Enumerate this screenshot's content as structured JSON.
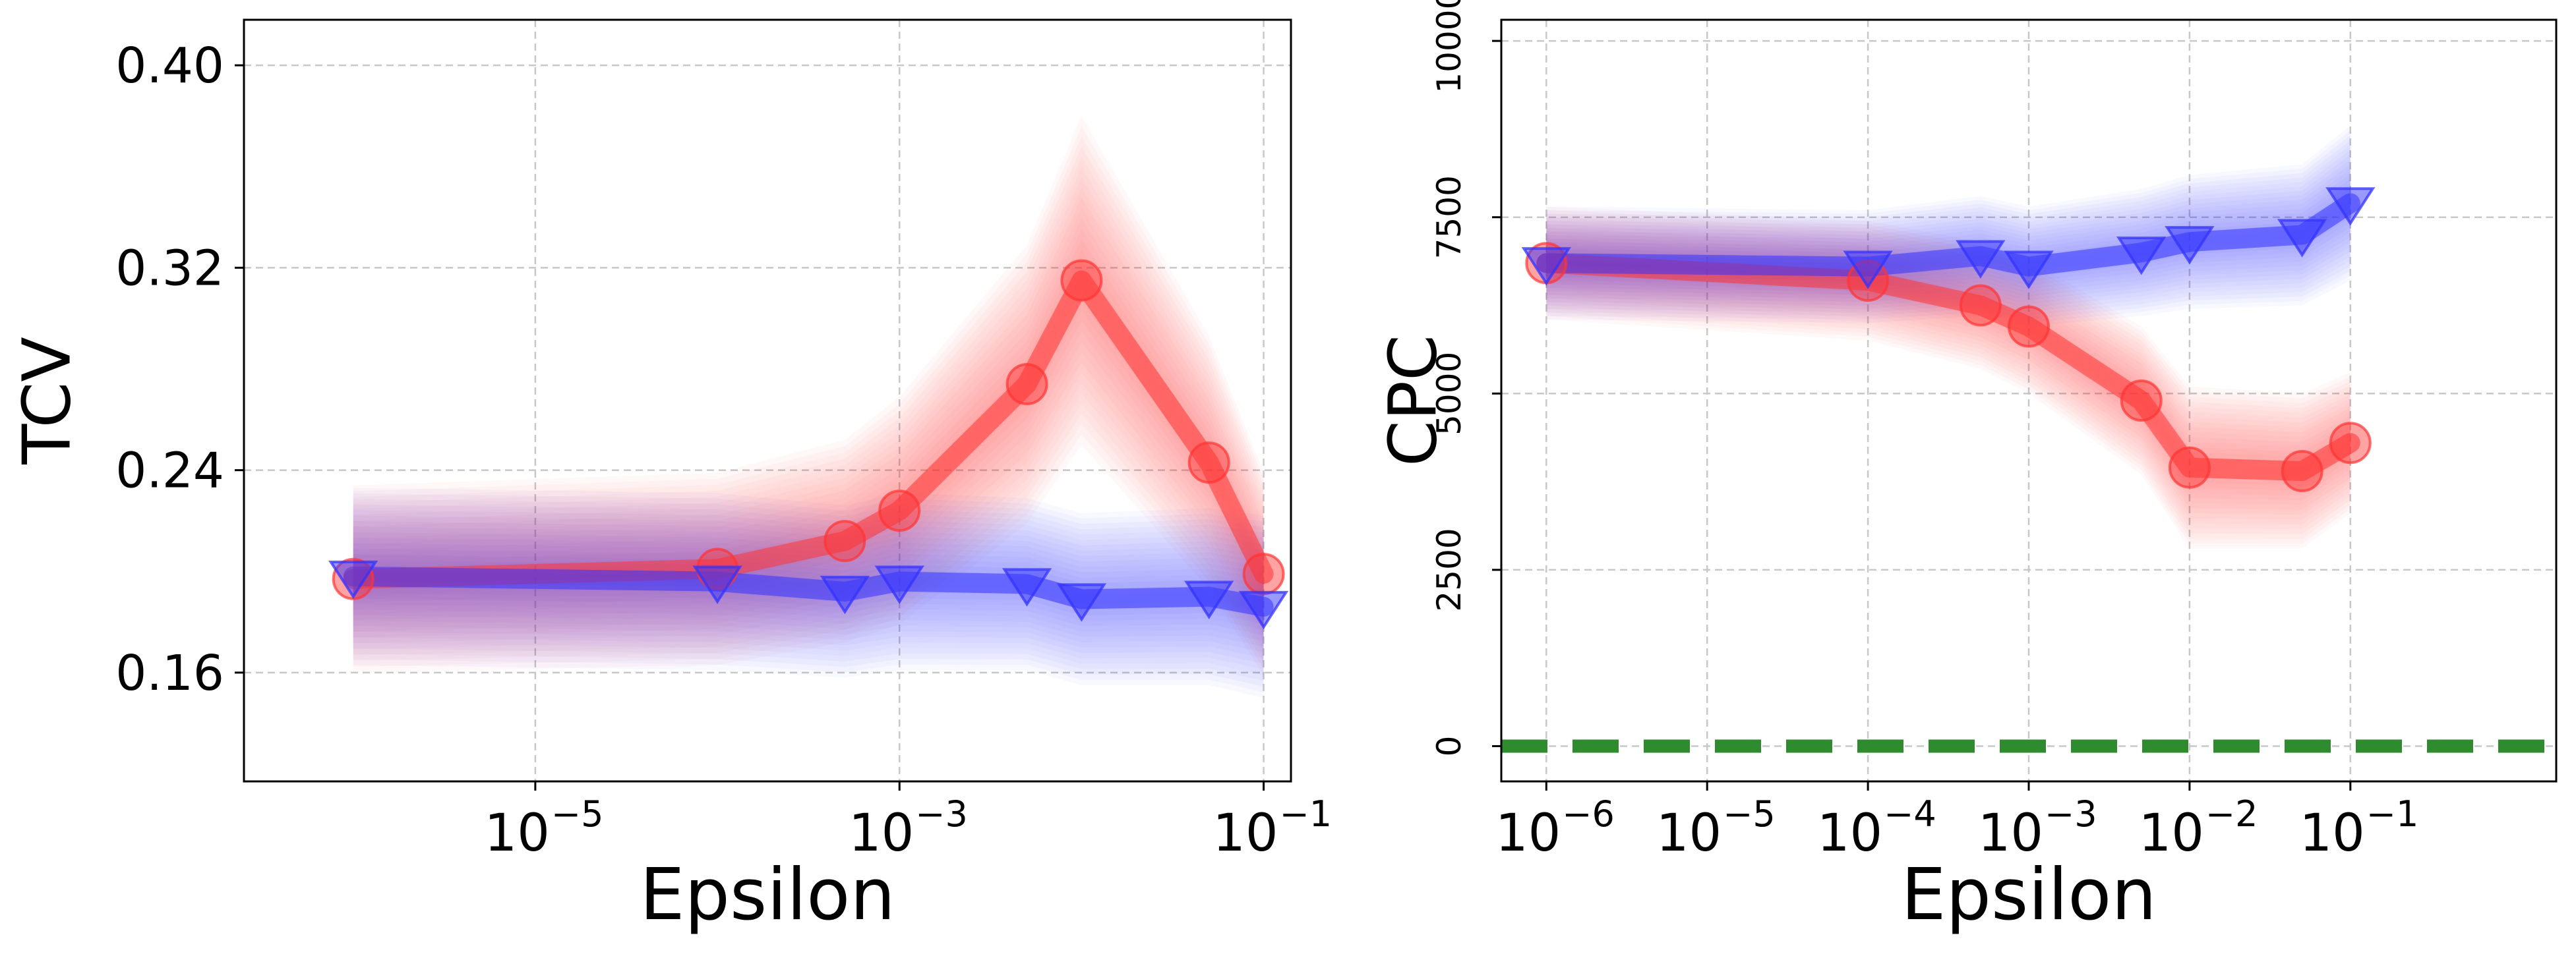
{
  "chart_data": [
    {
      "type": "line",
      "xscale": "log",
      "title": "",
      "xlabel": "Epsilon",
      "ylabel": "TCV",
      "xlim_exp": [
        -6.6,
        -0.85
      ],
      "ylim": [
        0.117,
        0.418
      ],
      "yticks": [
        0.16,
        0.24,
        0.32,
        0.4
      ],
      "ytick_labels": [
        "0.16",
        "0.24",
        "0.32",
        "0.40"
      ],
      "xticks_exp": [
        -5,
        -3,
        -1
      ],
      "xtick_labels": [
        "10",
        "10",
        "10"
      ],
      "xtick_exponents": [
        "−5",
        "−3",
        "−1"
      ],
      "grid": true,
      "series": [
        {
          "name": "red-circle",
          "color": "#ff3333",
          "marker": "circle",
          "x_exp": [
            -6.0,
            -4.0,
            -3.3,
            -3.0,
            -2.3,
            -2.0,
            -1.3,
            -1.0
          ],
          "values": [
            0.197,
            0.201,
            0.212,
            0.224,
            0.274,
            0.315,
            0.243,
            0.199
          ],
          "band": [
            0.037,
            0.038,
            0.04,
            0.045,
            0.055,
            0.065,
            0.05,
            0.04
          ]
        },
        {
          "name": "blue-triangle",
          "color": "#3333ff",
          "marker": "triangle-down",
          "x_exp": [
            -6.0,
            -4.0,
            -3.3,
            -3.0,
            -2.3,
            -2.0,
            -1.3,
            -1.0
          ],
          "values": [
            0.198,
            0.196,
            0.192,
            0.196,
            0.195,
            0.189,
            0.19,
            0.186
          ],
          "band": [
            0.035,
            0.035,
            0.034,
            0.035,
            0.034,
            0.034,
            0.035,
            0.036
          ]
        }
      ]
    },
    {
      "type": "line",
      "xscale": "log",
      "title": "",
      "xlabel": "Epsilon",
      "ylabel": "CPC",
      "xlim_exp": [
        -6.28,
        0.28
      ],
      "ylim": [
        -500,
        10300
      ],
      "yticks": [
        0,
        2500,
        5000,
        7500,
        10000
      ],
      "ytick_labels": [
        "0",
        "2500",
        "5000",
        "7500",
        "10000"
      ],
      "xticks_exp": [
        -6,
        -5,
        -4,
        -3,
        -2,
        -1
      ],
      "xtick_labels": [
        "10",
        "10",
        "10",
        "10",
        "10",
        "10"
      ],
      "xtick_exponents": [
        "−6",
        "−5",
        "−4",
        "−3",
        "−2",
        "−1"
      ],
      "grid": true,
      "reference_line": {
        "value": 0,
        "color": "#2e8b2e",
        "style": "dashed"
      },
      "series": [
        {
          "name": "red-circle",
          "color": "#ff3333",
          "marker": "circle",
          "x_exp": [
            -6.0,
            -4.0,
            -3.3,
            -3.0,
            -2.3,
            -2.0,
            -1.3,
            -1.0
          ],
          "values": [
            6850,
            6600,
            6250,
            5950,
            4900,
            3950,
            3900,
            4300
          ],
          "band": [
            800,
            850,
            900,
            950,
            1050,
            1150,
            1100,
            1000
          ]
        },
        {
          "name": "blue-triangle",
          "color": "#3333ff",
          "marker": "triangle-down",
          "x_exp": [
            -6.0,
            -4.0,
            -3.3,
            -3.0,
            -2.3,
            -2.0,
            -1.3,
            -1.0
          ],
          "values": [
            6850,
            6800,
            6950,
            6800,
            7000,
            7150,
            7250,
            7700
          ],
          "band": [
            800,
            800,
            850,
            850,
            900,
            950,
            1000,
            1100
          ]
        }
      ]
    }
  ]
}
